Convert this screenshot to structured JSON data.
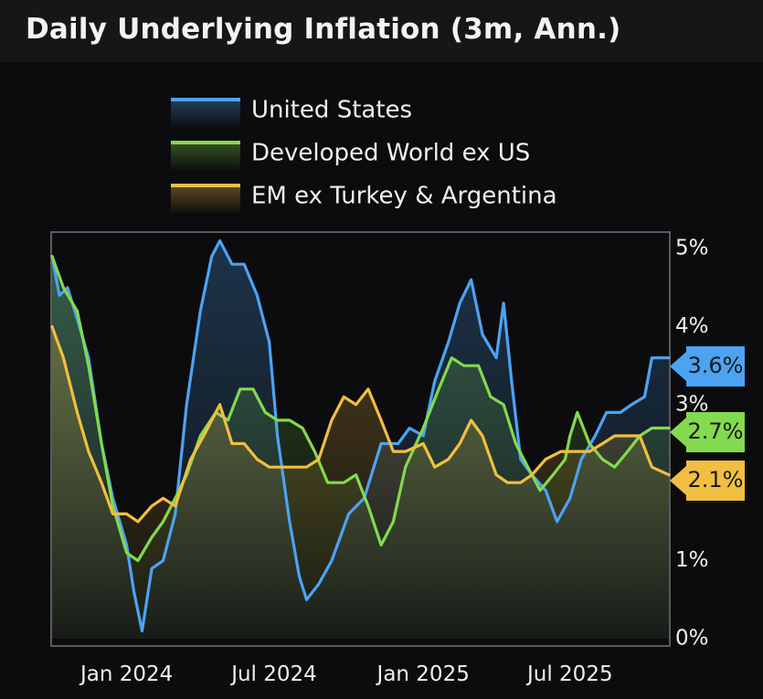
{
  "title": "Daily Underlying Inflation (3m, Ann.)",
  "chart_data": {
    "type": "area",
    "x_tick_labels": [
      "Jan 2024",
      "Jul 2024",
      "Jan 2025",
      "Jul 2025"
    ],
    "x_tick_dates": [
      "2024-01-01",
      "2024-07-01",
      "2025-01-01",
      "2025-07-01"
    ],
    "x_range": [
      "2023-10-01",
      "2025-10-31"
    ],
    "y_tick_labels": [
      "0%",
      "1%",
      "3%",
      "4%",
      "5%"
    ],
    "y_tick_values": [
      0,
      1,
      3,
      4,
      5
    ],
    "ylim": [
      0,
      5.2
    ],
    "y_axis_side": "right",
    "legend_placement": "top",
    "series": [
      {
        "name": "United States",
        "color": "#4ca3f2",
        "end_label": "3.6%",
        "points": [
          [
            "2023-10-01",
            4.9
          ],
          [
            "2023-10-10",
            4.4
          ],
          [
            "2023-10-20",
            4.5
          ],
          [
            "2023-11-01",
            4.1
          ],
          [
            "2023-11-15",
            3.6
          ],
          [
            "2023-12-01",
            2.5
          ],
          [
            "2023-12-15",
            1.8
          ],
          [
            "2024-01-01",
            1.2
          ],
          [
            "2024-01-10",
            0.6
          ],
          [
            "2024-01-20",
            0.1
          ],
          [
            "2024-02-01",
            0.9
          ],
          [
            "2024-02-15",
            1.0
          ],
          [
            "2024-03-01",
            1.6
          ],
          [
            "2024-03-15",
            3.0
          ],
          [
            "2024-04-01",
            4.2
          ],
          [
            "2024-04-15",
            4.9
          ],
          [
            "2024-04-25",
            5.1
          ],
          [
            "2024-05-10",
            4.8
          ],
          [
            "2024-05-25",
            4.8
          ],
          [
            "2024-06-10",
            4.4
          ],
          [
            "2024-06-25",
            3.8
          ],
          [
            "2024-07-05",
            2.6
          ],
          [
            "2024-07-20",
            1.5
          ],
          [
            "2024-08-01",
            0.8
          ],
          [
            "2024-08-10",
            0.5
          ],
          [
            "2024-08-25",
            0.7
          ],
          [
            "2024-09-10",
            1.0
          ],
          [
            "2024-10-01",
            1.6
          ],
          [
            "2024-10-20",
            1.8
          ],
          [
            "2024-11-10",
            2.5
          ],
          [
            "2024-12-01",
            2.5
          ],
          [
            "2024-12-15",
            2.7
          ],
          [
            "2025-01-01",
            2.6
          ],
          [
            "2025-01-15",
            3.3
          ],
          [
            "2025-02-01",
            3.8
          ],
          [
            "2025-02-15",
            4.3
          ],
          [
            "2025-03-01",
            4.6
          ],
          [
            "2025-03-15",
            3.9
          ],
          [
            "2025-04-01",
            3.6
          ],
          [
            "2025-04-10",
            4.3
          ],
          [
            "2025-04-20",
            3.3
          ],
          [
            "2025-05-01",
            2.3
          ],
          [
            "2025-05-15",
            2.1
          ],
          [
            "2025-06-01",
            1.9
          ],
          [
            "2025-06-15",
            1.5
          ],
          [
            "2025-07-01",
            1.8
          ],
          [
            "2025-07-15",
            2.3
          ],
          [
            "2025-08-01",
            2.6
          ],
          [
            "2025-08-15",
            2.9
          ],
          [
            "2025-09-01",
            2.9
          ],
          [
            "2025-09-15",
            3.0
          ],
          [
            "2025-10-01",
            3.1
          ],
          [
            "2025-10-10",
            3.6
          ],
          [
            "2025-10-31",
            3.6
          ]
        ]
      },
      {
        "name": "Developed World ex US",
        "color": "#83d94f",
        "end_label": "2.7%",
        "points": [
          [
            "2023-10-01",
            4.9
          ],
          [
            "2023-10-15",
            4.5
          ],
          [
            "2023-11-01",
            4.2
          ],
          [
            "2023-11-15",
            3.5
          ],
          [
            "2023-12-01",
            2.5
          ],
          [
            "2023-12-15",
            1.7
          ],
          [
            "2024-01-01",
            1.1
          ],
          [
            "2024-01-15",
            1.0
          ],
          [
            "2024-02-01",
            1.3
          ],
          [
            "2024-02-15",
            1.5
          ],
          [
            "2024-03-01",
            1.8
          ],
          [
            "2024-03-15",
            2.1
          ],
          [
            "2024-04-01",
            2.6
          ],
          [
            "2024-04-20",
            2.9
          ],
          [
            "2024-05-05",
            2.8
          ],
          [
            "2024-05-20",
            3.2
          ],
          [
            "2024-06-05",
            3.2
          ],
          [
            "2024-06-20",
            2.9
          ],
          [
            "2024-07-05",
            2.8
          ],
          [
            "2024-07-20",
            2.8
          ],
          [
            "2024-08-05",
            2.7
          ],
          [
            "2024-08-20",
            2.4
          ],
          [
            "2024-09-05",
            2.0
          ],
          [
            "2024-09-25",
            2.0
          ],
          [
            "2024-10-10",
            2.1
          ],
          [
            "2024-10-25",
            1.7
          ],
          [
            "2024-11-10",
            1.2
          ],
          [
            "2024-11-25",
            1.5
          ],
          [
            "2024-12-10",
            2.2
          ],
          [
            "2025-01-01",
            2.7
          ],
          [
            "2025-01-20",
            3.2
          ],
          [
            "2025-02-05",
            3.6
          ],
          [
            "2025-02-20",
            3.5
          ],
          [
            "2025-03-10",
            3.5
          ],
          [
            "2025-03-25",
            3.1
          ],
          [
            "2025-04-10",
            3.0
          ],
          [
            "2025-04-25",
            2.5
          ],
          [
            "2025-05-10",
            2.2
          ],
          [
            "2025-05-25",
            1.9
          ],
          [
            "2025-06-10",
            2.1
          ],
          [
            "2025-06-25",
            2.3
          ],
          [
            "2025-07-01",
            2.6
          ],
          [
            "2025-07-10",
            2.9
          ],
          [
            "2025-07-25",
            2.5
          ],
          [
            "2025-08-10",
            2.3
          ],
          [
            "2025-08-25",
            2.2
          ],
          [
            "2025-09-10",
            2.4
          ],
          [
            "2025-09-25",
            2.6
          ],
          [
            "2025-10-10",
            2.7
          ],
          [
            "2025-10-31",
            2.7
          ]
        ]
      },
      {
        "name": "EM ex Turkey & Argentina",
        "color": "#f2be41",
        "end_label": "2.1%",
        "points": [
          [
            "2023-10-01",
            4.0
          ],
          [
            "2023-10-15",
            3.6
          ],
          [
            "2023-11-01",
            2.9
          ],
          [
            "2023-11-15",
            2.4
          ],
          [
            "2023-12-01",
            2.0
          ],
          [
            "2023-12-15",
            1.6
          ],
          [
            "2024-01-01",
            1.6
          ],
          [
            "2024-01-15",
            1.5
          ],
          [
            "2024-02-01",
            1.7
          ],
          [
            "2024-02-15",
            1.8
          ],
          [
            "2024-03-01",
            1.7
          ],
          [
            "2024-03-20",
            2.3
          ],
          [
            "2024-04-05",
            2.6
          ],
          [
            "2024-04-25",
            3.0
          ],
          [
            "2024-05-10",
            2.5
          ],
          [
            "2024-05-25",
            2.5
          ],
          [
            "2024-06-10",
            2.3
          ],
          [
            "2024-06-25",
            2.2
          ],
          [
            "2024-07-10",
            2.2
          ],
          [
            "2024-07-25",
            2.2
          ],
          [
            "2024-08-10",
            2.2
          ],
          [
            "2024-08-25",
            2.3
          ],
          [
            "2024-09-10",
            2.8
          ],
          [
            "2024-09-25",
            3.1
          ],
          [
            "2024-10-10",
            3.0
          ],
          [
            "2024-10-25",
            3.2
          ],
          [
            "2024-11-10",
            2.8
          ],
          [
            "2024-11-25",
            2.4
          ],
          [
            "2024-12-10",
            2.4
          ],
          [
            "2025-01-01",
            2.5
          ],
          [
            "2025-01-15",
            2.2
          ],
          [
            "2025-02-01",
            2.3
          ],
          [
            "2025-02-15",
            2.5
          ],
          [
            "2025-03-01",
            2.8
          ],
          [
            "2025-03-15",
            2.6
          ],
          [
            "2025-04-01",
            2.1
          ],
          [
            "2025-04-15",
            2.0
          ],
          [
            "2025-05-01",
            2.0
          ],
          [
            "2025-05-15",
            2.1
          ],
          [
            "2025-06-01",
            2.3
          ],
          [
            "2025-06-20",
            2.4
          ],
          [
            "2025-07-10",
            2.4
          ],
          [
            "2025-07-25",
            2.4
          ],
          [
            "2025-08-10",
            2.5
          ],
          [
            "2025-08-25",
            2.6
          ],
          [
            "2025-09-10",
            2.6
          ],
          [
            "2025-09-25",
            2.6
          ],
          [
            "2025-10-10",
            2.2
          ],
          [
            "2025-10-31",
            2.1
          ]
        ]
      }
    ]
  }
}
